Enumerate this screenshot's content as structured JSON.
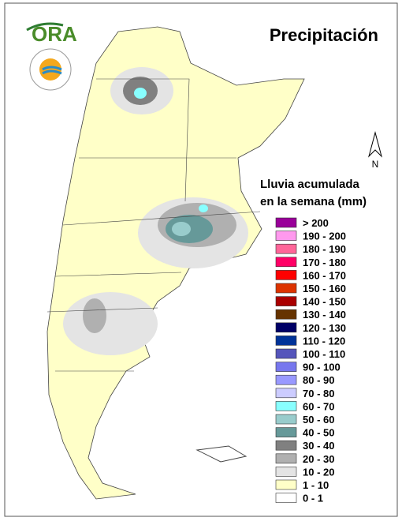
{
  "header": {
    "logo_text": "ORA",
    "title": "Precipitación"
  },
  "north_label": "N",
  "legend": {
    "title_lines": [
      "Lluvia acumulada",
      "en la semana (mm)"
    ],
    "items": [
      {
        "label": "> 200",
        "color": "#990099"
      },
      {
        "label": "190 - 200",
        "color": "#ff99ee"
      },
      {
        "label": "180 - 190",
        "color": "#ff6699"
      },
      {
        "label": "170 - 180",
        "color": "#ff0066"
      },
      {
        "label": "160 - 170",
        "color": "#ff0000"
      },
      {
        "label": "150 - 160",
        "color": "#dd3300"
      },
      {
        "label": "140 - 150",
        "color": "#aa0000"
      },
      {
        "label": "130 - 140",
        "color": "#663300"
      },
      {
        "label": "120 - 130",
        "color": "#000066"
      },
      {
        "label": "110 - 120",
        "color": "#003399"
      },
      {
        "label": "100 - 110",
        "color": "#5555bb"
      },
      {
        "label": "90 - 100",
        "color": "#7777ee"
      },
      {
        "label": "80 - 90",
        "color": "#9999ff"
      },
      {
        "label": "70 - 80",
        "color": "#ccccff"
      },
      {
        "label": "60 - 70",
        "color": "#88ffff"
      },
      {
        "label": "50 - 60",
        "color": "#99cccc"
      },
      {
        "label": "40 - 50",
        "color": "#669999"
      },
      {
        "label": "30 - 40",
        "color": "#808080"
      },
      {
        "label": "20 - 30",
        "color": "#b0b0b0"
      },
      {
        "label": "10 - 20",
        "color": "#e4e4e4"
      },
      {
        "label": "1 - 10",
        "color": "#ffffc8"
      },
      {
        "label": "0 - 1",
        "color": "#ffffff"
      }
    ]
  }
}
